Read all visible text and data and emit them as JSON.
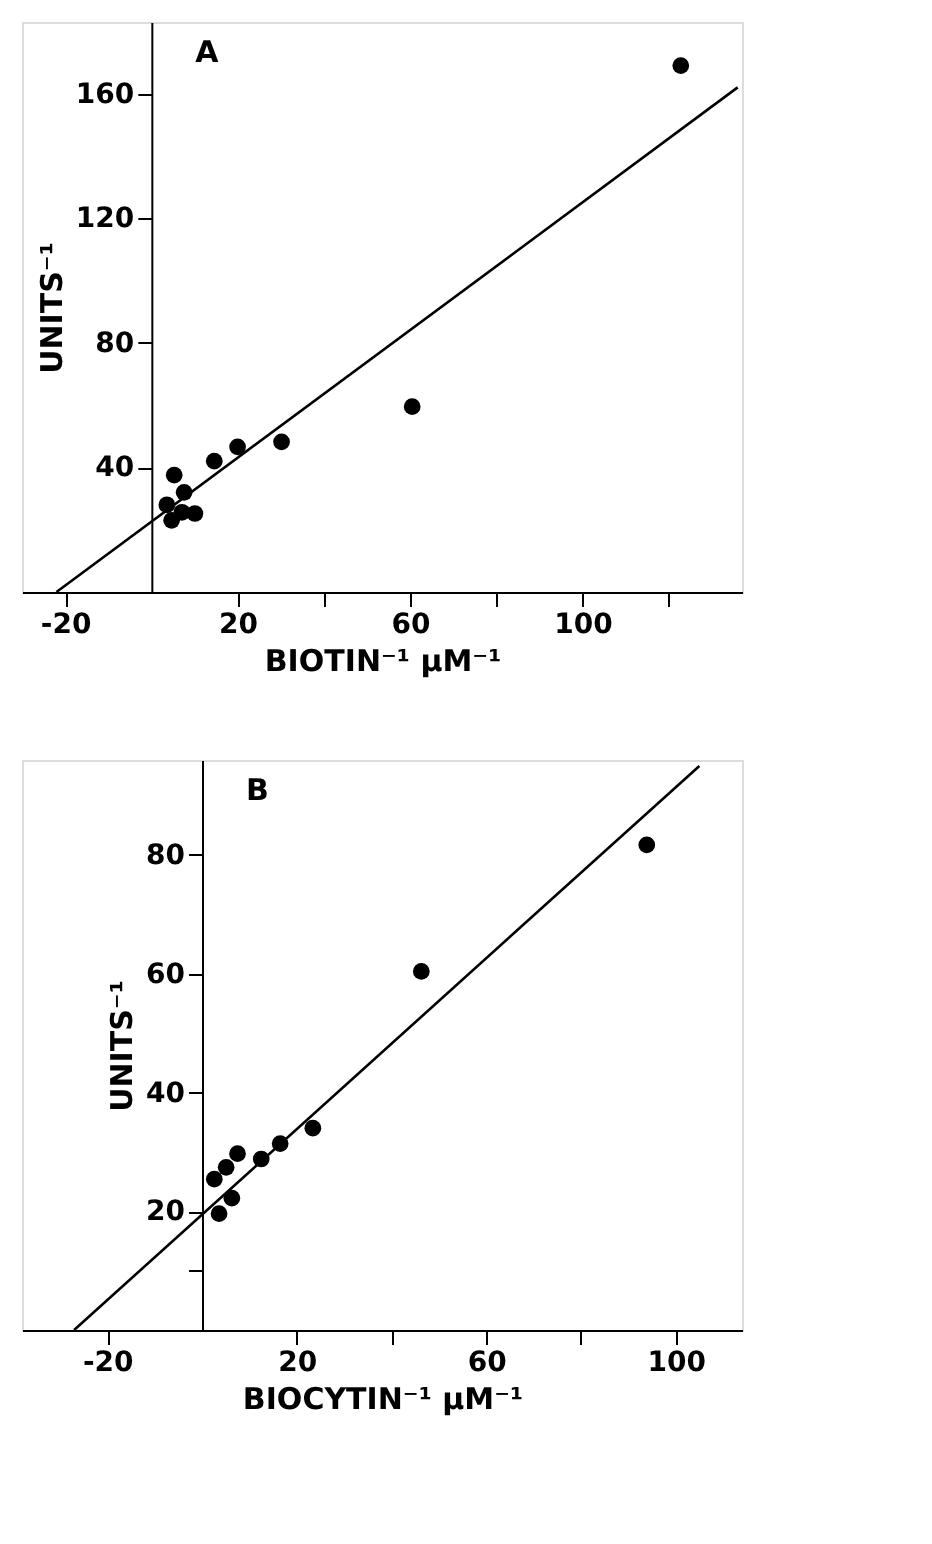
{
  "chart_data": [
    {
      "type": "scatter",
      "title": "A",
      "xlabel": "BIOTIN⁻¹ μM⁻¹",
      "ylabel": "UNITS⁻¹",
      "xlim": [
        -30,
        137
      ],
      "ylim": [
        0,
        183
      ],
      "xticks": [
        -20,
        20,
        {
          "value": 40,
          "label": null
        },
        60,
        {
          "value": 80,
          "label": null
        },
        100,
        {
          "value": 120,
          "label": null
        }
      ],
      "yticks": [
        40,
        80,
        120,
        160
      ],
      "grid": false,
      "series": [
        {
          "marker": "circle",
          "color": "#000000",
          "x": [
            5.3,
            7.6,
            3.6,
            4.7,
            7.1,
            10.1,
            14.6,
            20,
            30.2,
            60.5,
            122.8
          ],
          "values": [
            37.5,
            32,
            28,
            23,
            25.6,
            25.2,
            42,
            46.6,
            48.2,
            59.5,
            169
          ]
        },
        {
          "type": "line",
          "color": "#000000",
          "line_style": "solid",
          "x": [
            -22,
            136
          ],
          "values": [
            0,
            162
          ]
        }
      ]
    },
    {
      "type": "scatter",
      "title": "B",
      "xlabel": "BIOCYTIN⁻¹ μM⁻¹",
      "ylabel": "UNITS⁻¹",
      "xlim": [
        -38,
        114
      ],
      "ylim": [
        0,
        96
      ],
      "xticks": [
        -20,
        20,
        {
          "value": 40,
          "label": null
        },
        60,
        {
          "value": 80,
          "label": null
        },
        100
      ],
      "yticks": [
        {
          "value": 10,
          "label": null
        },
        20,
        40,
        60,
        80
      ],
      "grid": false,
      "series": [
        {
          "marker": "circle",
          "color": "#000000",
          "x": [
            93.9,
            46.3,
            23.4,
            16.5,
            12.5,
            7.5,
            5.1,
            2.6,
            6.3,
            3.6
          ],
          "values": [
            81.7,
            60.4,
            34,
            31.4,
            28.8,
            29.7,
            27.4,
            25.4,
            22.2,
            19.6
          ]
        },
        {
          "type": "line",
          "color": "#000000",
          "line_style": "solid",
          "x": [
            -27,
            105
          ],
          "values": [
            0,
            95
          ]
        }
      ]
    }
  ]
}
